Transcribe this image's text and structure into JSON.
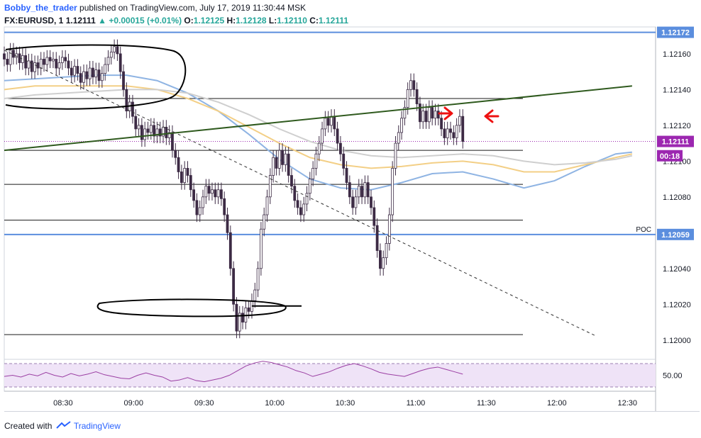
{
  "header": {
    "author": "Bobby_the_trader",
    "published": "published on TradingView.com, July 17, 2019 11:30:44 MSK"
  },
  "symbol_line": {
    "symbol": "FX:EURUSD, 1",
    "last": "1.12111",
    "change": "+0.00015 (+0.01%)",
    "open_label": "O:",
    "open": "1.12125",
    "high_label": "H:",
    "high": "1.12128",
    "low_label": "L:",
    "low": "1.12110",
    "close_label": "C:",
    "close": "1.12111"
  },
  "footer": {
    "created_with": "Created with",
    "brand": "TradingView"
  },
  "colors": {
    "candle": "#3d2b45",
    "trendline": "#2f5a1e",
    "poc_line": "#5b8ede",
    "ma_blue": "#8fb4e3",
    "ma_orange": "#f3cf86",
    "ma_gray": "#cfcfcf",
    "rsi_line": "#9b3fa3",
    "rsi_band": "#efe3f7",
    "arrow": "#ee1111",
    "price_tag": "#9c27b0"
  },
  "chart_data": [
    {
      "type": "candlestick",
      "title": "",
      "xlabel": "",
      "ylabel": "",
      "x_tick_labels": [
        "08:30",
        "09:00",
        "09:30",
        "10:00",
        "10:30",
        "11:00",
        "11:30",
        "12:00",
        "12:30"
      ],
      "x_tick_minutes": [
        510,
        540,
        570,
        600,
        630,
        660,
        690,
        720,
        750
      ],
      "xlim": [
        485,
        762
      ],
      "y_tick_labels": [
        "1.12000",
        "1.12020",
        "1.12040",
        "1.12080",
        "1.12100",
        "1.12120",
        "1.12140",
        "1.12160"
      ],
      "y_tick_values": [
        1.12,
        1.1202,
        1.1204,
        1.1208,
        1.121,
        1.1212,
        1.1214,
        1.1216
      ],
      "ylim": [
        1.1199,
        1.12175
      ],
      "price_tags": [
        {
          "label": "1.12172",
          "value": 1.12172,
          "color": "#5b8ede"
        },
        {
          "label": "1.12111",
          "value": 1.12111,
          "color": "#9c27b0"
        },
        {
          "label": "00:18",
          "value": 1.12103,
          "color": "#9c27b0"
        },
        {
          "label": "1.12059",
          "value": 1.12059,
          "color": "#5b8ede"
        }
      ],
      "poc": {
        "label": "POC",
        "value": 1.12059
      },
      "horizontal_levels": [
        1.12172,
        1.12135,
        1.12106,
        1.12087,
        1.12067,
        1.12003
      ],
      "current_price": 1.12111,
      "candles_close": [
        1.12157,
        1.12154,
        1.12162,
        1.12158,
        1.1216,
        1.12155,
        1.12159,
        1.12152,
        1.12156,
        1.1215,
        1.12155,
        1.12152,
        1.12157,
        1.12154,
        1.12158,
        1.12156,
        1.12157,
        1.12152,
        1.12155,
        1.12158,
        1.12156,
        1.12152,
        1.12148,
        1.12153,
        1.12149,
        1.12144,
        1.1215,
        1.12146,
        1.12152,
        1.12147,
        1.12151,
        1.12145,
        1.12149,
        1.12154,
        1.12158,
        1.12161,
        1.12164,
        1.1216,
        1.1215,
        1.1214,
        1.12128,
        1.12133,
        1.12125,
        1.12118,
        1.1212,
        1.12112,
        1.12118,
        1.12116,
        1.1212,
        1.12114,
        1.12118,
        1.12114,
        1.12119,
        1.12113,
        1.12116,
        1.12106,
        1.12102,
        1.12094,
        1.12088,
        1.12096,
        1.12092,
        1.12084,
        1.12078,
        1.1207,
        1.12074,
        1.1208,
        1.12086,
        1.12082,
        1.12084,
        1.1208,
        1.12084,
        1.12079,
        1.1207,
        1.1206,
        1.1204,
        1.1202,
        1.12005,
        1.12015,
        1.1201,
        1.12018,
        1.12016,
        1.12022,
        1.12028,
        1.1204,
        1.12062,
        1.1207,
        1.1208,
        1.12092,
        1.12102,
        1.12096,
        1.12106,
        1.12098,
        1.12104,
        1.12092,
        1.12086,
        1.12078,
        1.12074,
        1.1207,
        1.12076,
        1.12082,
        1.1209,
        1.12096,
        1.12104,
        1.1211,
        1.12118,
        1.12124,
        1.1212,
        1.12125,
        1.12118,
        1.1211,
        1.12104,
        1.12096,
        1.12088,
        1.1208,
        1.12074,
        1.1208,
        1.12086,
        1.1208,
        1.12088,
        1.1208,
        1.12074,
        1.12064,
        1.1205,
        1.1204,
        1.12046,
        1.12054,
        1.1207,
        1.12096,
        1.1211,
        1.12116,
        1.12124,
        1.1213,
        1.1214,
        1.12145,
        1.1214,
        1.12132,
        1.12122,
        1.12128,
        1.12122,
        1.1213,
        1.12124,
        1.12128,
        1.12124,
        1.12118,
        1.12113,
        1.12118,
        1.12116,
        1.12113,
        1.1212,
        1.12125,
        1.12111
      ],
      "series": [
        {
          "name": "",
          "color": "#8fb4e3",
          "values": [
            1.12145,
            1.12146,
            1.12147,
            1.12148,
            1.12148,
            1.12145,
            1.12138,
            1.12128,
            1.12115,
            1.12101,
            1.1209,
            1.12085,
            1.12084,
            1.12088,
            1.12093,
            1.12094,
            1.1209,
            1.12085,
            1.12089,
            1.12097,
            1.12104,
            1.12105
          ]
        },
        {
          "name": "",
          "color": "#f3cf86",
          "values": [
            1.1214,
            1.12142,
            1.12142,
            1.12142,
            1.12142,
            1.1214,
            1.12135,
            1.12128,
            1.12119,
            1.1211,
            1.12102,
            1.12098,
            1.12096,
            1.12097,
            1.12099,
            1.121,
            1.12098,
            1.12094,
            1.12094,
            1.12098,
            1.12102,
            1.12104
          ]
        },
        {
          "name": "",
          "color": "#cfcfcf",
          "values": [
            1.12135,
            1.12137,
            1.12138,
            1.12139,
            1.1214,
            1.1214,
            1.12138,
            1.12133,
            1.12126,
            1.12118,
            1.12111,
            1.12106,
            1.12103,
            1.12102,
            1.12103,
            1.12104,
            1.12103,
            1.121,
            1.12098,
            1.12099,
            1.12101,
            1.12103
          ]
        }
      ],
      "series_x_minutes": [
        485,
        498,
        511,
        524,
        537,
        550,
        563,
        576,
        589,
        602,
        615,
        628,
        641,
        654,
        667,
        680,
        693,
        706,
        719,
        732,
        745,
        752
      ]
    },
    {
      "type": "line",
      "title": "",
      "y_tick_labels": [
        "50.00"
      ],
      "band": [
        30,
        70
      ],
      "ylim": [
        20,
        80
      ],
      "rsi_values": [
        48,
        50,
        47,
        52,
        49,
        55,
        50,
        47,
        53,
        49,
        52,
        56,
        51,
        48,
        45,
        44,
        50,
        54,
        50,
        47,
        40,
        42,
        46,
        41,
        39,
        42,
        45,
        50,
        58,
        66,
        71,
        74,
        72,
        68,
        64,
        58,
        54,
        48,
        52,
        56,
        62,
        67,
        70,
        66,
        61,
        55,
        52,
        50,
        48,
        53,
        58,
        62,
        64,
        60,
        56,
        52
      ]
    }
  ]
}
